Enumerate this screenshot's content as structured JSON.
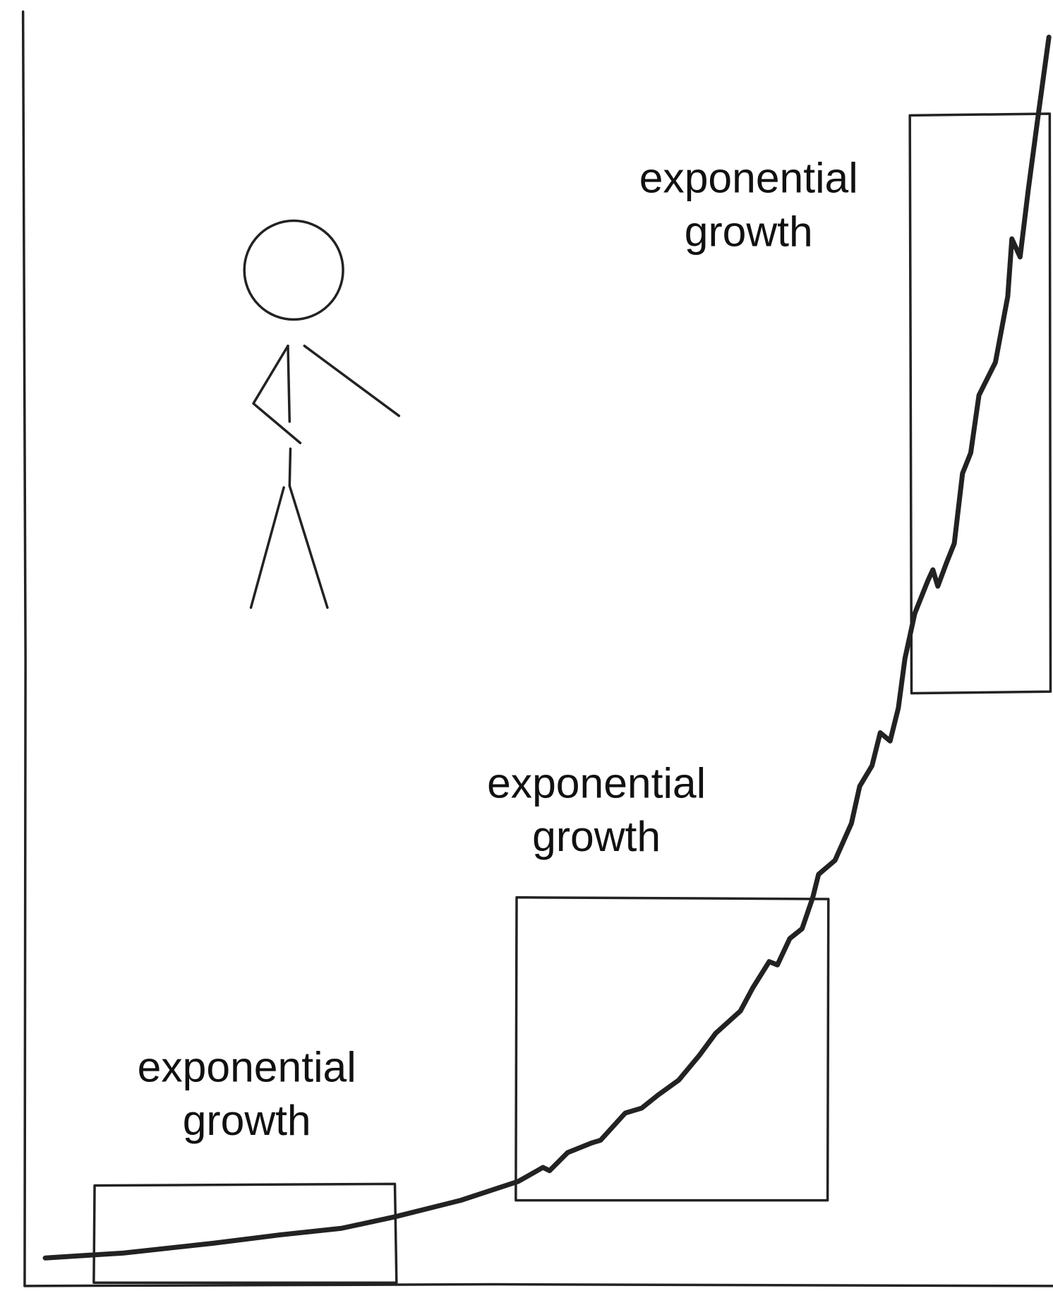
{
  "labels": [
    {
      "lines": [
        "exponential",
        "growth"
      ]
    },
    {
      "lines": [
        "exponential",
        "growth"
      ]
    },
    {
      "lines": [
        "exponential",
        "growth"
      ]
    }
  ]
}
